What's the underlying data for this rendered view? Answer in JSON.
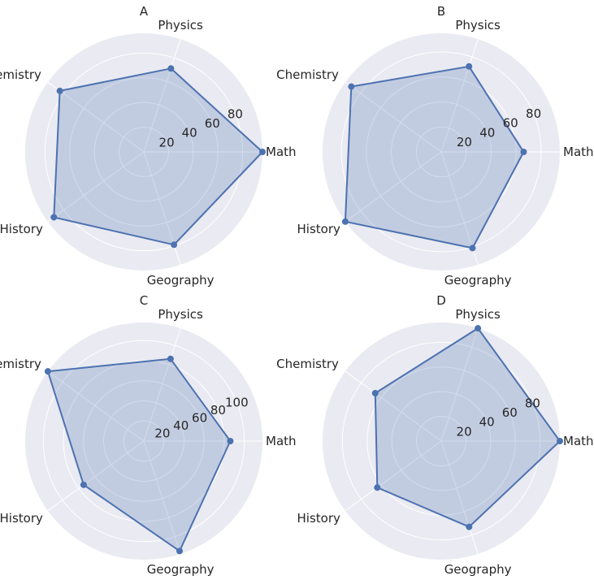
{
  "chart_data": [
    {
      "type": "radar",
      "title": "A",
      "categories": [
        "Math",
        "Physics",
        "Chemistry",
        "History",
        "Geography"
      ],
      "values": [
        96,
        71,
        84,
        90,
        79
      ],
      "rlim": [
        0,
        96
      ],
      "rticks": [
        20,
        40,
        60,
        80
      ],
      "grid": true
    },
    {
      "type": "radar",
      "title": "B",
      "categories": [
        "Math",
        "Physics",
        "Chemistry",
        "History",
        "Geography"
      ],
      "values": [
        66,
        72,
        89,
        95,
        81
      ],
      "rlim": [
        0,
        95
      ],
      "rticks": [
        20,
        40,
        60,
        80
      ],
      "grid": true
    },
    {
      "type": "radar",
      "title": "C",
      "categories": [
        "Math",
        "Physics",
        "Chemistry",
        "History",
        "Geography"
      ],
      "values": [
        86,
        86,
        118,
        74,
        115
      ],
      "rlim": [
        0,
        118
      ],
      "rticks": [
        20,
        40,
        60,
        80,
        100
      ],
      "grid": true
    },
    {
      "type": "radar",
      "title": "D",
      "categories": [
        "Math",
        "Physics",
        "Chemistry",
        "History",
        "Geography"
      ],
      "values": [
        96,
        96,
        66,
        64,
        73
      ],
      "rlim": [
        0,
        96
      ],
      "rticks": [
        20,
        40,
        60,
        80
      ],
      "grid": true
    }
  ],
  "style": {
    "background": "#eaeaf2",
    "grid_color": "#ffffff",
    "line_color": "#4c72b0",
    "fill_color": "#4c72b0",
    "text_color": "#262626"
  }
}
